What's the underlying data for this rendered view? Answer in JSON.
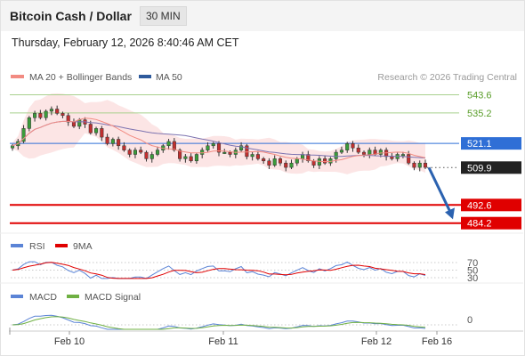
{
  "header": {
    "title": "Bitcoin Cash / Dollar",
    "timeframe": "30 MIN",
    "datetime": "Thursday, February 12, 2026 8:40:46 AM CET"
  },
  "legend": {
    "ma20": "MA 20 + Bollinger Bands",
    "ma50": "MA 50",
    "credit": "Research © 2026 Trading Central",
    "rsi": "RSI",
    "rsi_ma": "9MA",
    "macd": "MACD",
    "macd_signal": "MACD Signal"
  },
  "colors": {
    "ma20": "#f28b82",
    "bollinger_fill": "#fbdcdc",
    "ma50": "#2e5a9c",
    "ma50_line": "#7d73b0",
    "resistance": "#a8d08d",
    "resistance_text": "#5a9e2a",
    "pivot": "#2f6fd6",
    "support": "#e00000",
    "current": "#222222",
    "arrow": "#2b62b0",
    "candle_up": "#3a9c3a",
    "candle_down": "#c03030",
    "rsi": "#5b84d6",
    "rsi_ma": "#e00000",
    "macd": "#5b84d6",
    "macd_signal": "#6fb043"
  },
  "chart_data": {
    "type": "candlestick",
    "x_ticks": [
      "Feb 10",
      "Feb 11",
      "Feb 12",
      "Feb 16"
    ],
    "price_axis": {
      "ylim": [
        482,
        550
      ]
    },
    "levels": [
      {
        "label": "543.6",
        "value": 543.6,
        "kind": "resistance"
      },
      {
        "label": "535.2",
        "value": 535.2,
        "kind": "resistance"
      },
      {
        "label": "521.1",
        "value": 521.1,
        "kind": "pivot"
      },
      {
        "label": "509.9",
        "value": 509.9,
        "kind": "current"
      },
      {
        "label": "492.6",
        "value": 492.6,
        "kind": "support"
      },
      {
        "label": "484.2",
        "value": 484.2,
        "kind": "support"
      }
    ],
    "forecast_arrow": {
      "from": 509.9,
      "to": 486.0
    },
    "closes": [
      520,
      522,
      528,
      533,
      535,
      533,
      536,
      537,
      535,
      534,
      531,
      529,
      532,
      530,
      526,
      528,
      524,
      521,
      523,
      520,
      518,
      516,
      518,
      517,
      514,
      516,
      518,
      520,
      522,
      518,
      514,
      515,
      513,
      516,
      518,
      520,
      521,
      517,
      517,
      516,
      518,
      520,
      515,
      516,
      514,
      513,
      511,
      514,
      512,
      510,
      512,
      514,
      516,
      513,
      511,
      514,
      512,
      514,
      517,
      518,
      521,
      519,
      517,
      516,
      518,
      516,
      518,
      515,
      514,
      516,
      516,
      512,
      510,
      512,
      510
    ],
    "rsi": {
      "levels": [
        70,
        50,
        30
      ]
    },
    "macd": {
      "zero_label": "0"
    }
  }
}
